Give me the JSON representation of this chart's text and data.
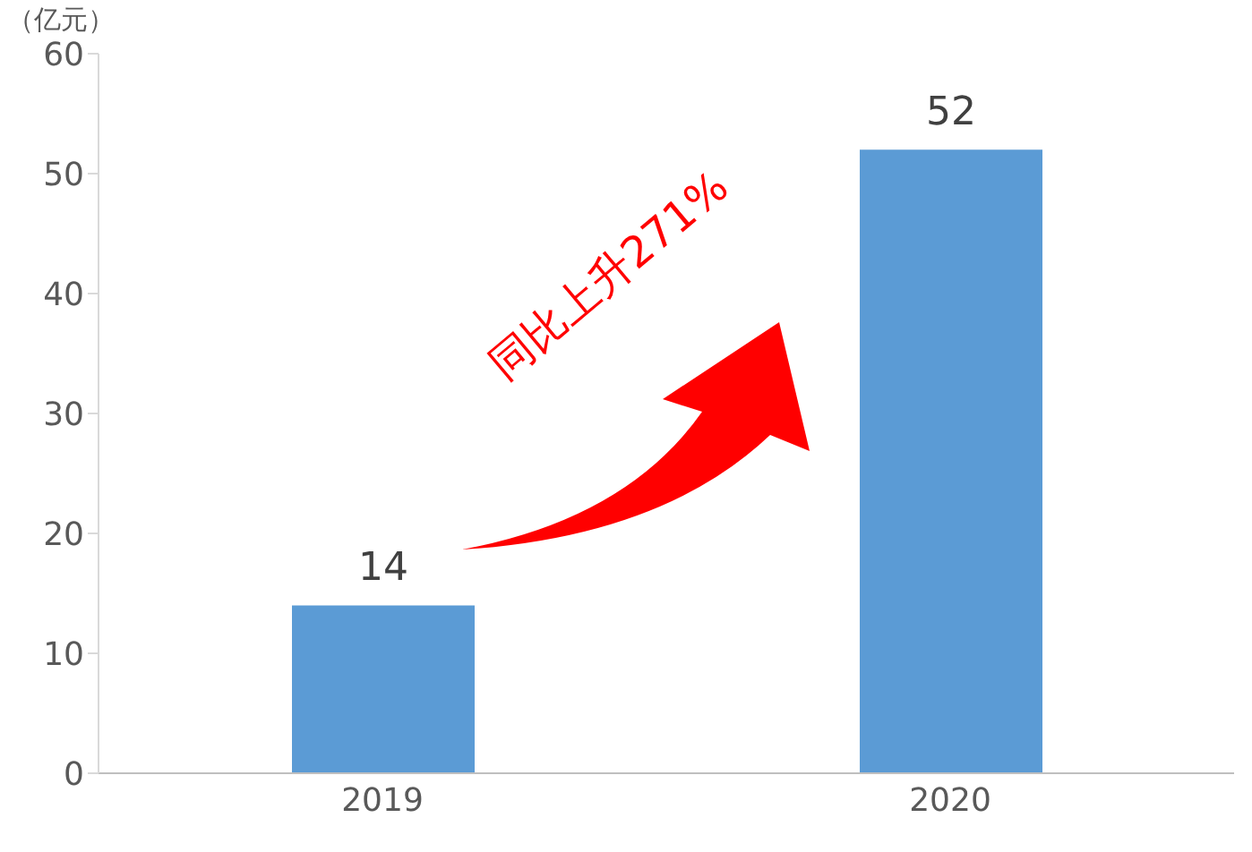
{
  "chart_data": {
    "type": "bar",
    "ylabel": "（亿元）",
    "categories": [
      "2019",
      "2020"
    ],
    "values": [
      14,
      52
    ],
    "color": "#5b9bd5",
    "ylim": [
      0,
      60
    ],
    "yticks": [
      0,
      10,
      20,
      30,
      40,
      50,
      60
    ],
    "data_labels": true,
    "annotations": [
      "同比上升271%"
    ]
  }
}
